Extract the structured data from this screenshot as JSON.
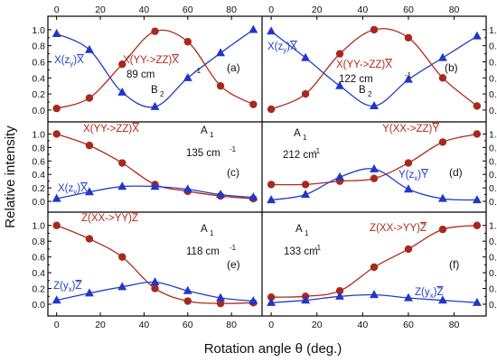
{
  "figure": {
    "ylabel": "Relative intensity",
    "xlabel": "Rotation angle θ (deg.)",
    "xticks": [
      "0",
      "20",
      "40",
      "60",
      "80"
    ],
    "yticks": [
      "0.0",
      "0.2",
      "0.4",
      "0.6",
      "0.8",
      "1.0"
    ]
  },
  "colors": {
    "red": "#b02a18",
    "blue": "#1f3fc6",
    "marker_red": "#a8281e",
    "marker_blue": "#2137c8"
  },
  "chart_data": [
    {
      "panel": "(a)",
      "type": "scatter",
      "x": [
        0,
        15,
        30,
        45,
        60,
        75,
        90
      ],
      "xlim": [
        -4,
        94
      ],
      "ylim": [
        -0.08,
        1.1
      ],
      "annotations": [
        "89 cm",
        "-1",
        "B",
        "2"
      ],
      "series": [
        {
          "name": "X(z y)X",
          "label_main": "X(z",
          "label_sub1": "y",
          "label_mid": ")",
          "label_bar": "X",
          "color": "blue",
          "marker": "triangle",
          "y": [
            0.95,
            0.75,
            0.22,
            0.04,
            0.4,
            0.71,
            1.0
          ]
        },
        {
          "name": "X(YY->ZZ)X",
          "label_main": "X(YY->ZZ)",
          "label_bar": "X",
          "color": "red",
          "marker": "circle",
          "y": [
            0.02,
            0.15,
            0.57,
            0.98,
            0.85,
            0.3,
            0.07
          ]
        }
      ]
    },
    {
      "panel": "(b)",
      "type": "scatter",
      "x": [
        0,
        15,
        30,
        45,
        60,
        75,
        90
      ],
      "xlim": [
        -4,
        94
      ],
      "ylim": [
        -0.08,
        1.1
      ],
      "annotations": [
        "122 cm",
        "-1",
        "B",
        "2"
      ],
      "series": [
        {
          "name": "X(z y)X",
          "label_main": "X(z",
          "label_sub1": "y",
          "label_mid": ")",
          "label_bar": "X",
          "color": "blue",
          "marker": "triangle",
          "y": [
            0.98,
            0.65,
            0.3,
            0.05,
            0.38,
            0.65,
            0.92
          ]
        },
        {
          "name": "X(YY->ZZ)X",
          "label_main": "X(YY->ZZ)",
          "label_bar": "X",
          "color": "red",
          "marker": "circle",
          "y": [
            0.01,
            0.2,
            0.7,
            1.0,
            0.9,
            0.4,
            0.05
          ]
        }
      ]
    },
    {
      "panel": "(c)",
      "type": "scatter",
      "x": [
        0,
        15,
        30,
        45,
        60,
        75,
        90
      ],
      "xlim": [
        -4,
        94
      ],
      "ylim": [
        -0.08,
        1.1
      ],
      "annotations": [
        "A",
        "1",
        "135 cm",
        "-1"
      ],
      "series": [
        {
          "name": "X(YY->ZZ)X",
          "label_main": "X(YY->ZZ)",
          "label_bar": "X",
          "color": "red",
          "marker": "circle",
          "y": [
            1.0,
            0.83,
            0.57,
            0.25,
            0.15,
            0.08,
            0.04
          ]
        },
        {
          "name": "X(z y)X",
          "label_main": "X(z",
          "label_sub1": "y",
          "label_mid": ")",
          "label_bar": "X",
          "color": "blue",
          "marker": "triangle",
          "y": [
            0.04,
            0.14,
            0.22,
            0.22,
            0.18,
            0.1,
            0.06
          ]
        }
      ]
    },
    {
      "panel": "(d)",
      "type": "scatter",
      "x": [
        0,
        15,
        30,
        45,
        60,
        75,
        90
      ],
      "xlim": [
        -4,
        94
      ],
      "ylim": [
        -0.08,
        1.1
      ],
      "annotations": [
        "A",
        "1",
        "212 cm",
        "-1"
      ],
      "series": [
        {
          "name": "Y(XX->ZZ)Y",
          "label_main": "Y(XX->ZZ)",
          "label_bar": "Y",
          "color": "red",
          "marker": "circle",
          "y": [
            0.25,
            0.25,
            0.3,
            0.34,
            0.57,
            0.88,
            1.0
          ]
        },
        {
          "name": "Y(z x)Y",
          "label_main": "Y(z",
          "label_sub1": "x",
          "label_mid": ")",
          "label_bar": "Y",
          "color": "blue",
          "marker": "triangle",
          "y": [
            0.02,
            0.1,
            0.36,
            0.48,
            0.18,
            0.04,
            0.02
          ]
        }
      ]
    },
    {
      "panel": "(e)",
      "type": "scatter",
      "x": [
        0,
        15,
        30,
        45,
        60,
        75,
        90
      ],
      "xlim": [
        -4,
        94
      ],
      "ylim": [
        -0.08,
        1.1
      ],
      "annotations": [
        "A",
        "1",
        "118 cm",
        "-1"
      ],
      "series": [
        {
          "name": "Z(XX->YY)Z",
          "label_main": "Z(XX->YY)",
          "label_bar": "Z",
          "color": "red",
          "marker": "circle",
          "y": [
            1.0,
            0.83,
            0.6,
            0.2,
            0.04,
            0.01,
            0.02
          ]
        },
        {
          "name": "Z(y x)Z",
          "label_main": "Z(y",
          "label_sub1": "x",
          "label_mid": ")",
          "label_bar": "Z",
          "color": "blue",
          "marker": "triangle",
          "y": [
            0.05,
            0.14,
            0.22,
            0.28,
            0.17,
            0.08,
            0.04
          ]
        }
      ]
    },
    {
      "panel": "(f)",
      "type": "scatter",
      "x": [
        0,
        15,
        30,
        45,
        60,
        75,
        90
      ],
      "xlim": [
        -4,
        94
      ],
      "ylim": [
        -0.08,
        1.1
      ],
      "annotations": [
        "A",
        "1",
        "133 cm",
        "-1"
      ],
      "series": [
        {
          "name": "Z(XX->YY)Z",
          "label_main": "Z(XX->YY)",
          "label_bar": "Z",
          "color": "red",
          "marker": "circle",
          "y": [
            0.09,
            0.1,
            0.17,
            0.47,
            0.7,
            0.95,
            1.0
          ]
        },
        {
          "name": "Z(y x)Z",
          "label_main": "Z(y",
          "label_sub1": "x",
          "label_mid": ")",
          "label_bar": "Z",
          "color": "blue",
          "marker": "triangle",
          "y": [
            0.02,
            0.05,
            0.1,
            0.12,
            0.08,
            0.05,
            0.02
          ]
        }
      ]
    }
  ]
}
